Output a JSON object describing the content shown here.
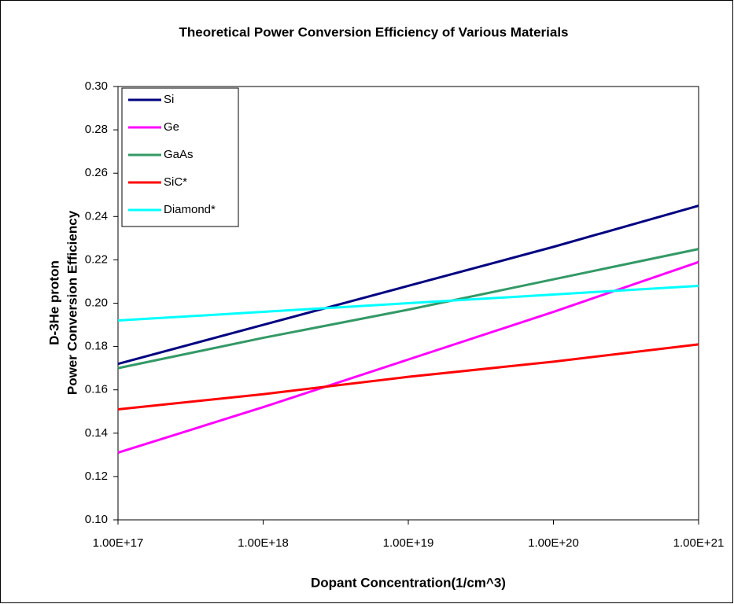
{
  "chart_data": {
    "type": "line",
    "title": "Theoretical Power Conversion Efficiency of Various Materials",
    "xlabel": "Dopant Concentration(1/cm^3)",
    "ylabel": [
      "D-3He proton",
      "Power Conversion Efficiency"
    ],
    "x": [
      1e+17,
      1e+18,
      1e+19,
      1e+20,
      1e+21
    ],
    "xscale": "log",
    "xlim": [
      1e+17,
      1e+21
    ],
    "xticks": [
      {
        "value": 1e+17,
        "label": "1.00E+17"
      },
      {
        "value": 1e+18,
        "label": "1.00E+18"
      },
      {
        "value": 1e+19,
        "label": "1.00E+19"
      },
      {
        "value": 1e+20,
        "label": "1.00E+20"
      },
      {
        "value": 1e+21,
        "label": "1.00E+21"
      }
    ],
    "ylim": [
      0.1,
      0.3
    ],
    "yticks": [
      {
        "value": 0.1,
        "label": "0.10"
      },
      0.12,
      0.14,
      0.16,
      0.18,
      {
        "value": 0.2,
        "label": "0.20"
      },
      0.22,
      0.24,
      0.26,
      0.28,
      {
        "value": 0.3,
        "label": "0.30"
      }
    ],
    "grid": false,
    "legend": "upper left",
    "series": [
      {
        "name": "Si",
        "color": "#000080",
        "values": [
          0.172,
          0.19,
          0.208,
          0.226,
          0.245
        ]
      },
      {
        "name": "Ge",
        "color": "#ff00ff",
        "values": [
          0.131,
          0.152,
          0.174,
          0.196,
          0.219
        ]
      },
      {
        "name": "GaAs",
        "color": "#339966",
        "values": [
          0.17,
          0.184,
          0.197,
          0.211,
          0.225
        ]
      },
      {
        "name": "SiC*",
        "color": "#ff0000",
        "values": [
          0.151,
          0.158,
          0.166,
          0.173,
          0.181
        ]
      },
      {
        "name": "Diamond*",
        "color": "#00ffff",
        "values": [
          0.192,
          0.196,
          0.2,
          0.204,
          0.208
        ]
      }
    ]
  }
}
